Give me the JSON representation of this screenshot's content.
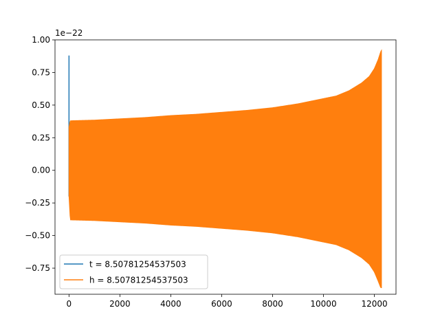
{
  "chart_data": {
    "type": "line",
    "title": "",
    "xlabel": "",
    "ylabel": "",
    "y_scale_note": "1e−22",
    "xlim": [
      -550,
      12850
    ],
    "ylim": [
      -0.95,
      1.0
    ],
    "x_ticks": [
      0,
      2000,
      4000,
      6000,
      8000,
      10000,
      12000
    ],
    "x_tick_labels": [
      "0",
      "2000",
      "4000",
      "6000",
      "8000",
      "10000",
      "12000"
    ],
    "y_ticks": [
      -0.75,
      -0.5,
      -0.25,
      0.0,
      0.25,
      0.5,
      0.75,
      1.0
    ],
    "y_tick_labels": [
      "−0.75",
      "−0.50",
      "−0.25",
      "0.00",
      "0.25",
      "0.50",
      "0.75",
      "1.00"
    ],
    "grid": false,
    "legend_position": "lower-left",
    "series": [
      {
        "name": "t = 8.50781254537503",
        "color": "#1f77b4",
        "description": "short transient spike near x=0",
        "x": [
          0,
          0,
          0,
          0,
          0
        ],
        "y": [
          -0.2,
          0.88,
          0.05,
          0.32,
          0.0
        ]
      },
      {
        "name": "h = 8.50781254537503",
        "color": "#ff7f0e",
        "description": "oscillating chirp, envelope amplitude vs x",
        "envelope_x": [
          0,
          50,
          1000,
          2000,
          3000,
          4000,
          5000,
          6000,
          7000,
          8000,
          9000,
          10000,
          10500,
          11000,
          11500,
          11800,
          12000,
          12150,
          12250,
          12280
        ],
        "envelope_upper": [
          0.33,
          0.38,
          0.385,
          0.395,
          0.405,
          0.42,
          0.43,
          0.445,
          0.46,
          0.48,
          0.51,
          0.55,
          0.57,
          0.61,
          0.67,
          0.72,
          0.78,
          0.85,
          0.91,
          0.92
        ],
        "envelope_lower": [
          -0.2,
          -0.38,
          -0.385,
          -0.395,
          -0.405,
          -0.42,
          -0.43,
          -0.445,
          -0.46,
          -0.48,
          -0.51,
          -0.55,
          -0.57,
          -0.61,
          -0.67,
          -0.72,
          -0.78,
          -0.85,
          -0.9,
          -0.9
        ]
      }
    ]
  }
}
